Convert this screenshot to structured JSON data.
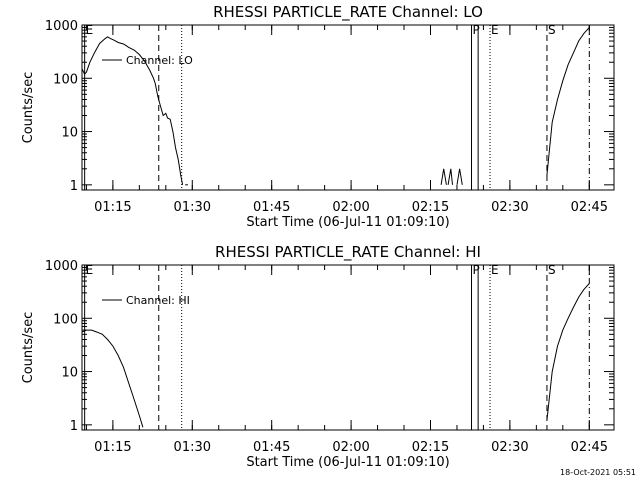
{
  "timestamp": "18-Oct-2021 05:51",
  "chart_data": [
    {
      "type": "line",
      "title": "RHESSI PARTICLE_RATE Channel: LO",
      "xlabel": "Start Time (06-Jul-11 01:09:10)",
      "ylabel": "Counts/sec",
      "yscale": "log",
      "ylim": [
        0.8,
        1000
      ],
      "xlim": [
        "01:09:10",
        "02:49:40"
      ],
      "x_ticks": [
        "01:15",
        "01:30",
        "01:45",
        "02:00",
        "02:15",
        "02:30",
        "02:45"
      ],
      "y_ticks": [
        "1",
        "10",
        "100",
        "1000"
      ],
      "legend": {
        "label": "Channel: LO",
        "position": "top-left"
      },
      "markers": [
        {
          "label": "E",
          "time": "01:09:40",
          "style": "solid"
        },
        {
          "label": "",
          "time": "01:23:40",
          "style": "dashed"
        },
        {
          "label": "",
          "time": "01:28:00",
          "style": "dotted"
        },
        {
          "label": "P",
          "time": "02:22:45",
          "style": "solid"
        },
        {
          "label": "",
          "time": "02:24:00",
          "style": "solid"
        },
        {
          "label": "E",
          "time": "02:26:15",
          "style": "dotted"
        },
        {
          "label": "S",
          "time": "02:37:00",
          "style": "dashed"
        },
        {
          "label": "",
          "time": "02:45:00",
          "style": "dashdot"
        }
      ],
      "series": [
        {
          "name": "Channel: LO",
          "segments": [
            [
              [
                "01:09:10",
                150
              ],
              [
                "01:09:40",
                120
              ],
              [
                "01:10:00",
                130
              ],
              [
                "01:10:40",
                200
              ],
              [
                "01:11:30",
                300
              ],
              [
                "01:12:30",
                450
              ],
              [
                "01:13:30",
                550
              ],
              [
                "01:14:00",
                600
              ],
              [
                "01:14:30",
                560
              ],
              [
                "01:15:10",
                520
              ],
              [
                "01:16:00",
                470
              ],
              [
                "01:17:00",
                440
              ],
              [
                "01:18:00",
                380
              ],
              [
                "01:19:00",
                340
              ],
              [
                "01:20:00",
                280
              ],
              [
                "01:21:00",
                210
              ],
              [
                "01:22:00",
                140
              ],
              [
                "01:22:40",
                100
              ],
              [
                "01:23:00",
                80
              ],
              [
                "01:23:30",
                45
              ],
              [
                "01:24:00",
                30
              ],
              [
                "01:24:30",
                20
              ],
              [
                "01:25:00",
                22
              ],
              [
                "01:25:20",
                18
              ],
              [
                "01:25:50",
                17
              ],
              [
                "01:26:20",
                10
              ],
              [
                "01:26:50",
                5
              ],
              [
                "01:27:20",
                3
              ],
              [
                "01:27:50",
                1.5
              ],
              [
                "01:28:10",
                1
              ]
            ],
            [
              [
                "01:28:40",
                1
              ],
              [
                "01:29:10",
                1
              ]
            ],
            [
              [
                "02:17:00",
                1
              ],
              [
                "02:17:30",
                2
              ],
              [
                "02:18:00",
                1
              ]
            ],
            [
              [
                "02:18:20",
                1
              ],
              [
                "02:18:50",
                2
              ],
              [
                "02:19:10",
                1
              ]
            ],
            [
              [
                "02:20:00",
                1
              ],
              [
                "02:20:30",
                2
              ],
              [
                "02:21:00",
                1
              ]
            ],
            [
              [
                "02:37:00",
                1.5
              ],
              [
                "02:38:00",
                15
              ],
              [
                "02:39:00",
                40
              ],
              [
                "02:40:00",
                90
              ],
              [
                "02:41:00",
                180
              ],
              [
                "02:42:00",
                300
              ],
              [
                "02:43:00",
                500
              ],
              [
                "02:44:00",
                700
              ],
              [
                "02:45:00",
                900
              ]
            ]
          ]
        }
      ]
    },
    {
      "type": "line",
      "title": "RHESSI PARTICLE_RATE Channel: HI",
      "xlabel": "Start Time (06-Jul-11 01:09:10)",
      "ylabel": "Counts/sec",
      "yscale": "log",
      "ylim": [
        0.8,
        1000
      ],
      "xlim": [
        "01:09:10",
        "02:49:40"
      ],
      "x_ticks": [
        "01:15",
        "01:30",
        "01:45",
        "02:00",
        "02:15",
        "02:30",
        "02:45"
      ],
      "y_ticks": [
        "1",
        "10",
        "100",
        "1000"
      ],
      "legend": {
        "label": "Channel: HI",
        "position": "top-left"
      },
      "markers": [
        {
          "label": "E",
          "time": "01:09:40",
          "style": "solid"
        },
        {
          "label": "",
          "time": "01:23:40",
          "style": "dashed"
        },
        {
          "label": "",
          "time": "01:28:00",
          "style": "dotted"
        },
        {
          "label": "P",
          "time": "02:22:45",
          "style": "solid"
        },
        {
          "label": "",
          "time": "02:24:00",
          "style": "solid"
        },
        {
          "label": "E",
          "time": "02:26:15",
          "style": "dotted"
        },
        {
          "label": "S",
          "time": "02:37:00",
          "style": "dashed"
        },
        {
          "label": "",
          "time": "02:45:00",
          "style": "dashdot"
        }
      ],
      "series": [
        {
          "name": "Channel: HI",
          "segments": [
            [
              [
                "01:09:10",
                55
              ],
              [
                "01:10:00",
                60
              ],
              [
                "01:11:00",
                60
              ],
              [
                "01:12:00",
                55
              ],
              [
                "01:13:00",
                50
              ],
              [
                "01:14:00",
                40
              ],
              [
                "01:15:00",
                30
              ],
              [
                "01:16:00",
                20
              ],
              [
                "01:17:00",
                12
              ],
              [
                "01:18:00",
                6
              ],
              [
                "01:19:00",
                3
              ],
              [
                "01:20:00",
                1.5
              ],
              [
                "01:20:40",
                0.9
              ]
            ],
            [
              [
                "02:37:00",
                1.2
              ],
              [
                "02:38:00",
                10
              ],
              [
                "02:39:00",
                30
              ],
              [
                "02:40:00",
                60
              ],
              [
                "02:41:00",
                100
              ],
              [
                "02:42:00",
                160
              ],
              [
                "02:43:00",
                250
              ],
              [
                "02:44:00",
                350
              ],
              [
                "02:45:00",
                450
              ]
            ]
          ]
        }
      ]
    }
  ]
}
